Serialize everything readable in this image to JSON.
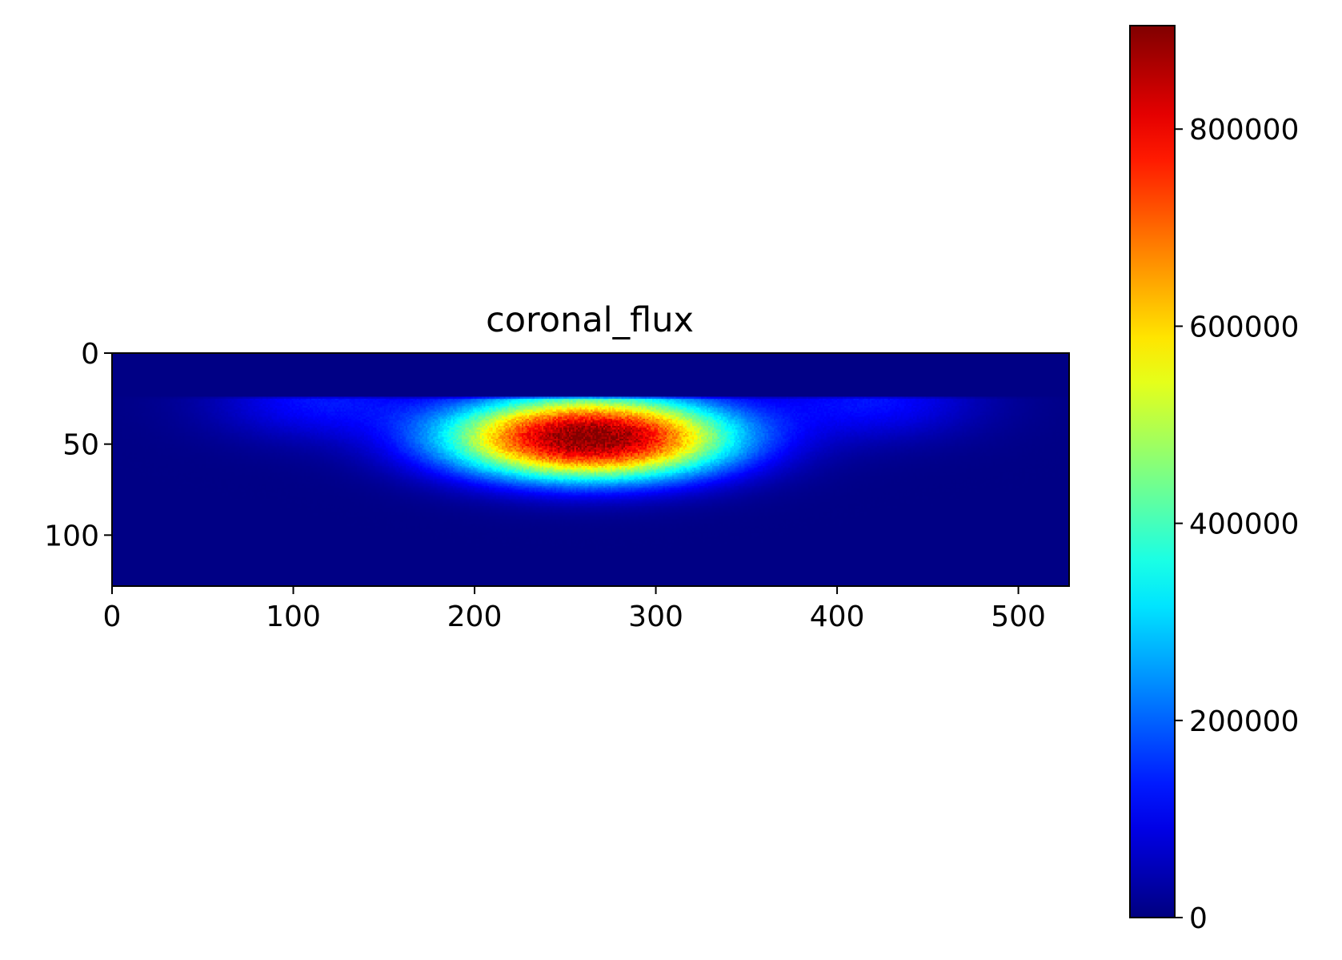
{
  "chart_data": {
    "type": "heatmap",
    "title": "coronal_flux",
    "xlabel": "",
    "ylabel": "",
    "image_shape": [
      128,
      528
    ],
    "xlim": [
      0,
      528
    ],
    "ylim": [
      128,
      0
    ],
    "xticks": [
      0,
      100,
      200,
      300,
      400,
      500
    ],
    "yticks": [
      0,
      50,
      100
    ],
    "colormap": "jet",
    "colorbar": {
      "vmin": 0,
      "vmax": 905000,
      "ticks": [
        0,
        200000,
        400000,
        600000,
        800000
      ]
    },
    "background_value": 5000,
    "features": [
      {
        "label": "central peak",
        "center_x": 263,
        "center_y": 46,
        "peak": 900000,
        "top_edge_y": 24
      },
      {
        "label": "left lobe",
        "center_x": 115,
        "center_y": 26,
        "peak": 120000,
        "top_edge_y": 24
      },
      {
        "label": "right lobe",
        "center_x": 418,
        "center_y": 26,
        "peak": 120000,
        "top_edge_y": 24
      }
    ]
  }
}
